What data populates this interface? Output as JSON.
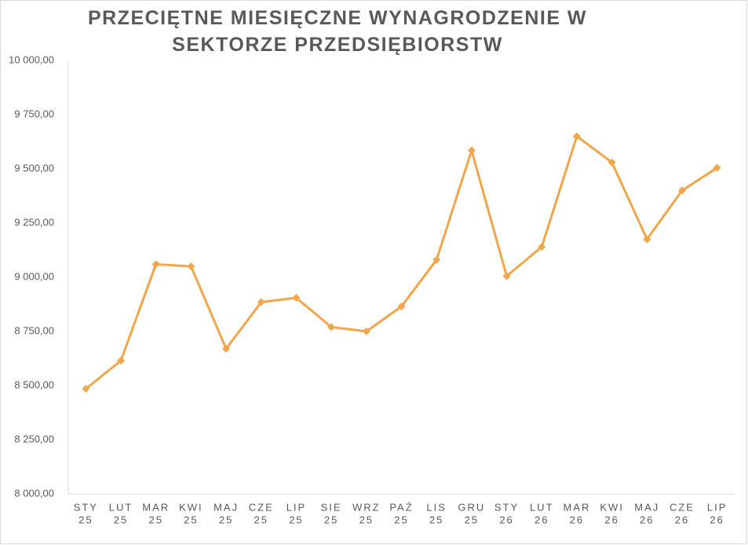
{
  "chart_data": {
    "type": "line",
    "title": "PRZECIĘTNE MIESIĘCZNE WYNAGRODZENIE W SEKTORZE PRZEDSIĘBIORSTW",
    "categories": [
      [
        "STY",
        "25"
      ],
      [
        "LUT",
        "25"
      ],
      [
        "MAR",
        "25"
      ],
      [
        "KWI",
        "25"
      ],
      [
        "MAJ",
        "25"
      ],
      [
        "CZE",
        "25"
      ],
      [
        "LIP",
        "25"
      ],
      [
        "SIE",
        "25"
      ],
      [
        "WRZ",
        "25"
      ],
      [
        "PAŹ",
        "25"
      ],
      [
        "LIS",
        "25"
      ],
      [
        "GRU",
        "25"
      ],
      [
        "STY",
        "26"
      ],
      [
        "LUT",
        "26"
      ],
      [
        "MAR",
        "26"
      ],
      [
        "KWI",
        "26"
      ],
      [
        "MAJ",
        "26"
      ],
      [
        "CZE",
        "26"
      ],
      [
        "LIP",
        "26"
      ]
    ],
    "series": [
      {
        "color": "#f0a64a",
        "values": [
          8485,
          8615,
          9060,
          9050,
          8670,
          8885,
          8905,
          8770,
          8750,
          8865,
          9080,
          9585,
          9005,
          9140,
          9650,
          9530,
          9175,
          9400,
          9505
        ]
      }
    ],
    "ylim": [
      8000,
      10000
    ],
    "yticks": [
      {
        "value": 8000,
        "label": "8 000,00"
      },
      {
        "value": 8250,
        "label": "8 250,00"
      },
      {
        "value": 8500,
        "label": "8 500,00"
      },
      {
        "value": 8750,
        "label": "8 750,00"
      },
      {
        "value": 9000,
        "label": "9 000,00"
      },
      {
        "value": 9250,
        "label": "9 250,00"
      },
      {
        "value": 9500,
        "label": "9 500,00"
      },
      {
        "value": 9750,
        "label": "9 750,00"
      },
      {
        "value": 10000,
        "label": "10 000,00"
      }
    ],
    "grid": false
  }
}
